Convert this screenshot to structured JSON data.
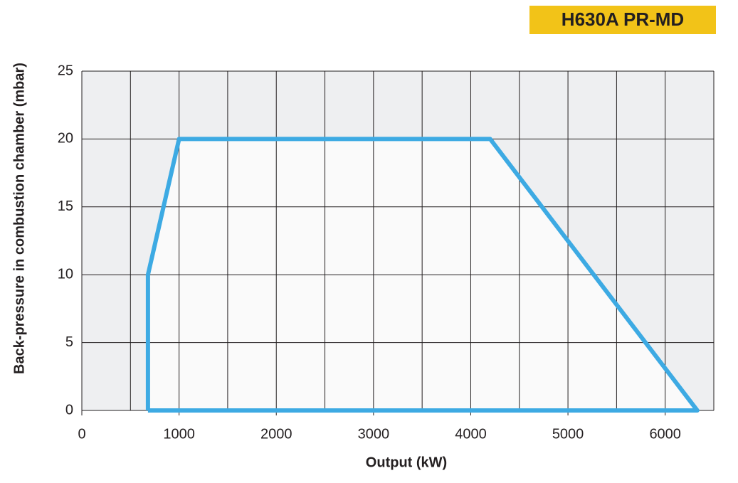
{
  "chart_data": {
    "type": "area",
    "title": "H630A PR-MD",
    "x_label": "Output (kW)",
    "y_label": "Back-pressure in combustion chamber (mbar)",
    "x": [
      680,
      680,
      1000,
      4200,
      6330,
      680
    ],
    "values": [
      0,
      10,
      20,
      20,
      0,
      0
    ],
    "color": "#3daae3",
    "xlim": [
      0,
      6500
    ],
    "ylim": [
      0,
      25
    ],
    "xticks": [
      0,
      1000,
      2000,
      3000,
      4000,
      5000,
      6000
    ],
    "yticks": [
      0,
      5,
      10,
      15,
      20,
      25
    ],
    "x_grid_lines": [
      0,
      500,
      1000,
      1500,
      2000,
      2500,
      3000,
      3500,
      4000,
      4500,
      5000,
      5500,
      6000,
      6500
    ],
    "grid": true
  }
}
